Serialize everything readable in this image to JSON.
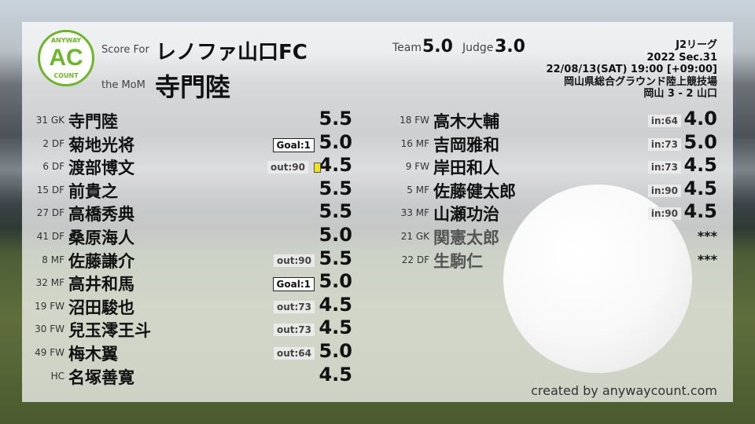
{
  "header": {
    "score_for_label": "Score For",
    "team_name": "レノファ山口FC",
    "mom_label": "the MoM",
    "mom_name": "寺門陸",
    "team_label": "Team",
    "team_score": "5.0",
    "judge_label": "Judge",
    "judge_score": "3.0"
  },
  "logo": {
    "top_text": "ANYWAY",
    "main": "AC",
    "bottom_text": "COUNT",
    "color": "#6fb52c"
  },
  "match": {
    "league": "J2リーグ",
    "season": "2022 Sec.31",
    "datetime": "22/08/13(SAT) 19:00 [+09:00]",
    "venue": "岡山県総合グラウンド陸上競技場",
    "result": "岡山 3 - 2 山口"
  },
  "starters": [
    {
      "num": "31",
      "pos": "GK",
      "name": "寺門陸",
      "score": "5.5"
    },
    {
      "num": "2",
      "pos": "DF",
      "name": "菊地光将",
      "score": "5.0",
      "goal": "Goal:1"
    },
    {
      "num": "6",
      "pos": "DF",
      "name": "渡部博文",
      "score": "4.5",
      "sub": "out:90",
      "yellow_card": true
    },
    {
      "num": "15",
      "pos": "DF",
      "name": "前貴之",
      "score": "5.5"
    },
    {
      "num": "27",
      "pos": "DF",
      "name": "高橋秀典",
      "score": "5.5"
    },
    {
      "num": "41",
      "pos": "DF",
      "name": "桑原海人",
      "score": "5.0"
    },
    {
      "num": "8",
      "pos": "MF",
      "name": "佐藤謙介",
      "score": "5.5",
      "sub": "out:90"
    },
    {
      "num": "32",
      "pos": "MF",
      "name": "高井和馬",
      "score": "5.0",
      "goal": "Goal:1"
    },
    {
      "num": "19",
      "pos": "FW",
      "name": "沼田駿也",
      "score": "4.5",
      "sub": "out:73"
    },
    {
      "num": "30",
      "pos": "FW",
      "name": "兒玉澪王斗",
      "score": "4.5",
      "sub": "out:73"
    },
    {
      "num": "49",
      "pos": "FW",
      "name": "梅木翼",
      "score": "5.0",
      "sub": "out:64"
    },
    {
      "num": "",
      "pos": "HC",
      "name": "名塚善寛",
      "score": "4.5"
    }
  ],
  "subs": [
    {
      "num": "18",
      "pos": "FW",
      "name": "高木大輔",
      "score": "4.0",
      "sub": "in:64"
    },
    {
      "num": "16",
      "pos": "MF",
      "name": "吉岡雅和",
      "score": "5.0",
      "sub": "in:73"
    },
    {
      "num": "9",
      "pos": "FW",
      "name": "岸田和人",
      "score": "4.5",
      "sub": "in:73"
    },
    {
      "num": "5",
      "pos": "MF",
      "name": "佐藤健太郎",
      "score": "4.5",
      "sub": "in:90"
    },
    {
      "num": "33",
      "pos": "MF",
      "name": "山瀬功治",
      "score": "4.5",
      "sub": "in:90"
    },
    {
      "num": "21",
      "pos": "GK",
      "name": "関憲太郎",
      "score": "***",
      "unused": true
    },
    {
      "num": "22",
      "pos": "DF",
      "name": "生駒仁",
      "score": "***",
      "unused": true
    }
  ],
  "footer": {
    "credit": "created by anywaycount.com"
  }
}
